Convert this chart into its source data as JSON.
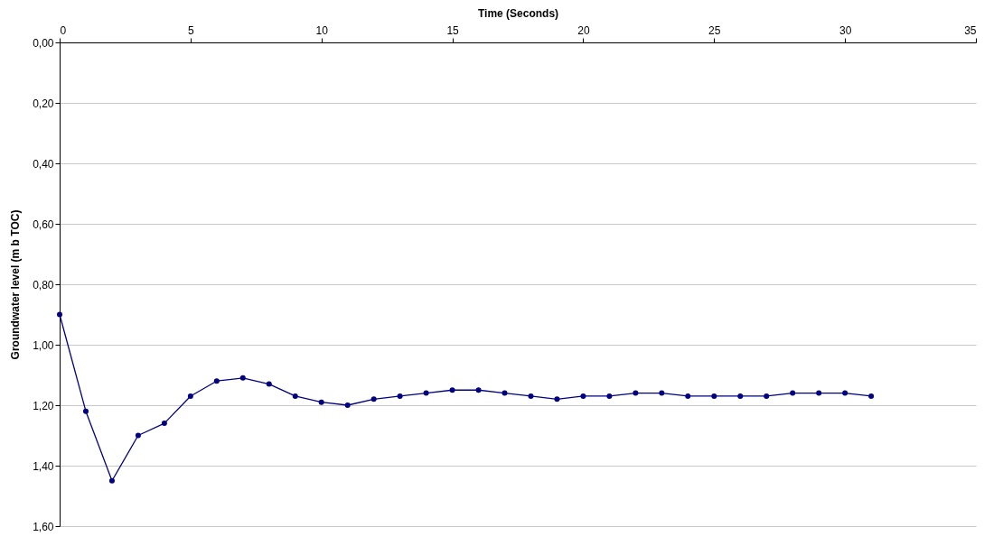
{
  "chart_data": {
    "type": "line",
    "xlabel": "Time (Seconds)",
    "ylabel": "Groundwater level (m b  TOC)",
    "x": [
      0,
      1,
      2,
      3,
      4,
      5,
      6,
      7,
      8,
      9,
      10,
      11,
      12,
      13,
      14,
      15,
      16,
      17,
      18,
      19,
      20,
      21,
      22,
      23,
      24,
      25,
      26,
      27,
      28,
      29,
      30,
      31
    ],
    "series": [
      {
        "color": "#000080",
        "values": [
          0.9,
          1.22,
          1.45,
          1.3,
          1.26,
          1.17,
          1.12,
          1.11,
          1.13,
          1.17,
          1.19,
          1.2,
          1.18,
          1.17,
          1.16,
          1.15,
          1.15,
          1.16,
          1.17,
          1.18,
          1.17,
          1.17,
          1.16,
          1.16,
          1.17,
          1.17,
          1.17,
          1.17,
          1.16,
          1.16,
          1.16,
          1.17
        ]
      }
    ],
    "xlim": [
      0,
      35
    ],
    "xticks": [
      0,
      5,
      10,
      15,
      20,
      25,
      30,
      35
    ],
    "ylim": [
      1.6,
      0
    ],
    "yticks": [
      {
        "value": 0,
        "label": "0,00"
      },
      {
        "value": 0.2,
        "label": "0,20"
      },
      {
        "value": 0.4,
        "label": "0,40"
      },
      {
        "value": 0.6,
        "label": "0,60"
      },
      {
        "value": 0.8,
        "label": "0,80"
      },
      {
        "value": 1.0,
        "label": "1,00"
      },
      {
        "value": 1.2,
        "label": "1,20"
      },
      {
        "value": 1.4,
        "label": "1,40"
      },
      {
        "value": 1.6,
        "label": "1,60"
      }
    ],
    "grid": "y",
    "marker": "circle",
    "line_style": "solid"
  }
}
